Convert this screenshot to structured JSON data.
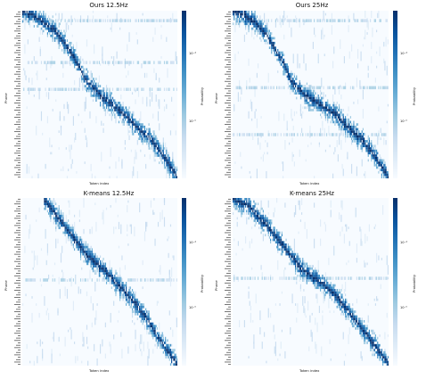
{
  "figure": {
    "ylabel": "Phone",
    "xlabel": "Token index",
    "colorbar_label": "Probability",
    "colorbar_ticks": [
      "10⁻⁴",
      "10⁻⁵"
    ]
  },
  "chart_data": [
    {
      "type": "heatmap",
      "title": "Ours 12.5Hz",
      "xlabel": "Token index",
      "ylabel": "Phone",
      "colorbar": {
        "label": "Probability",
        "scale": "log",
        "ticks": [
          "10⁻⁴",
          "10⁻⁵"
        ]
      },
      "colormap": [
        "#f7fbff",
        "#deebf7",
        "#c6dbef",
        "#9ecae1",
        "#6baed6",
        "#4292c6",
        "#2171b5",
        "#08519c",
        "#08306b"
      ],
      "diagonal_path": [
        [
          0.0,
          0.0
        ],
        [
          0.05,
          0.01
        ],
        [
          0.12,
          0.05
        ],
        [
          0.22,
          0.12
        ],
        [
          0.34,
          0.28
        ],
        [
          0.4,
          0.4
        ],
        [
          0.46,
          0.46
        ],
        [
          0.52,
          0.52
        ],
        [
          0.58,
          0.56
        ],
        [
          0.66,
          0.62
        ],
        [
          0.74,
          0.7
        ],
        [
          0.82,
          0.76
        ],
        [
          0.9,
          0.86
        ],
        [
          0.96,
          0.94
        ],
        [
          1.0,
          1.0
        ]
      ],
      "strong_rows": [
        0.05,
        0.3,
        0.46
      ],
      "seed": 11
    },
    {
      "type": "heatmap",
      "title": "Ours 25Hz",
      "xlabel": "Token index",
      "ylabel": "Phone",
      "colorbar": {
        "label": "Probability",
        "scale": "log",
        "ticks": [
          "10⁻⁴",
          "10⁻⁵"
        ]
      },
      "colormap": [
        "#f7fbff",
        "#deebf7",
        "#c6dbef",
        "#9ecae1",
        "#6baed6",
        "#4292c6",
        "#2171b5",
        "#08519c",
        "#08306b"
      ],
      "diagonal_path": [
        [
          0.0,
          0.0
        ],
        [
          0.06,
          0.01
        ],
        [
          0.14,
          0.06
        ],
        [
          0.22,
          0.14
        ],
        [
          0.32,
          0.3
        ],
        [
          0.38,
          0.42
        ],
        [
          0.46,
          0.5
        ],
        [
          0.56,
          0.56
        ],
        [
          0.66,
          0.62
        ],
        [
          0.74,
          0.7
        ],
        [
          0.82,
          0.76
        ],
        [
          0.9,
          0.86
        ],
        [
          0.96,
          0.94
        ],
        [
          1.0,
          1.0
        ]
      ],
      "strong_rows": [
        0.05,
        0.45,
        0.73
      ],
      "seed": 23
    },
    {
      "type": "heatmap",
      "title": "K-means 12.5Hz",
      "xlabel": "Token index",
      "ylabel": "Phone",
      "colorbar": {
        "label": "Probability",
        "scale": "log",
        "ticks": [
          "10⁻⁴",
          "10⁻⁵"
        ]
      },
      "colormap": [
        "#f7fbff",
        "#deebf7",
        "#c6dbef",
        "#9ecae1",
        "#6baed6",
        "#4292c6",
        "#2171b5",
        "#08519c",
        "#08306b"
      ],
      "diagonal_path": [
        [
          0.14,
          0.0
        ],
        [
          0.22,
          0.1
        ],
        [
          0.32,
          0.22
        ],
        [
          0.42,
          0.34
        ],
        [
          0.54,
          0.44
        ],
        [
          0.62,
          0.52
        ],
        [
          0.72,
          0.62
        ],
        [
          0.8,
          0.72
        ],
        [
          0.88,
          0.84
        ],
        [
          0.94,
          0.92
        ],
        [
          1.0,
          1.0
        ]
      ],
      "strong_rows": [
        0.48
      ],
      "seed": 37
    },
    {
      "type": "heatmap",
      "title": "K-means 25Hz",
      "xlabel": "Token index",
      "ylabel": "Phone",
      "colorbar": {
        "label": "Probability",
        "scale": "log",
        "ticks": [
          "10⁻⁴",
          "10⁻⁵"
        ]
      },
      "colormap": [
        "#f7fbff",
        "#deebf7",
        "#c6dbef",
        "#9ecae1",
        "#6baed6",
        "#4292c6",
        "#2171b5",
        "#08519c",
        "#08306b"
      ],
      "diagonal_path": [
        [
          0.0,
          0.0
        ],
        [
          0.1,
          0.04
        ],
        [
          0.22,
          0.16
        ],
        [
          0.34,
          0.3
        ],
        [
          0.44,
          0.42
        ],
        [
          0.56,
          0.5
        ],
        [
          0.66,
          0.58
        ],
        [
          0.76,
          0.7
        ],
        [
          0.86,
          0.82
        ],
        [
          0.94,
          0.92
        ],
        [
          1.0,
          1.0
        ]
      ],
      "strong_rows": [
        0.47
      ],
      "seed": 53
    }
  ]
}
